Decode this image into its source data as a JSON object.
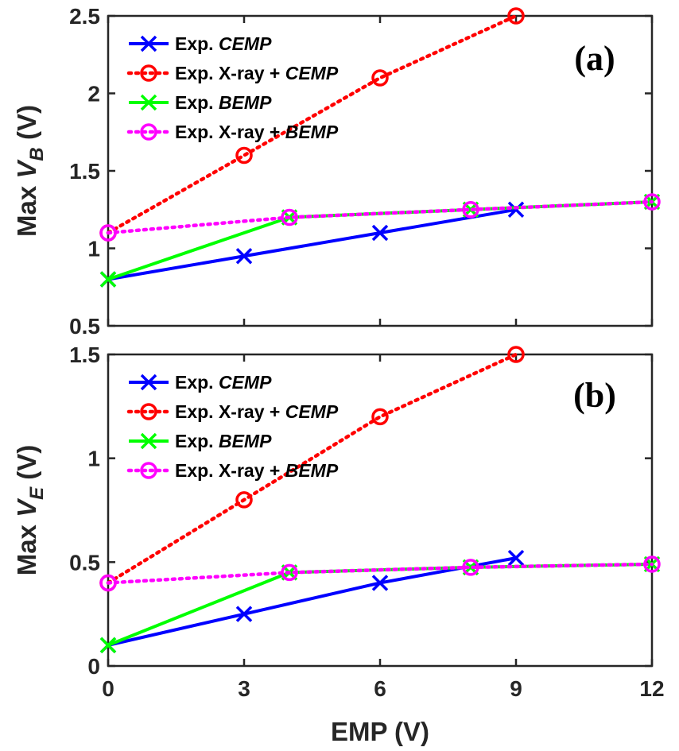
{
  "colors": {
    "cemp": "#0000ff",
    "xray_cemp": "#ff0000",
    "bemp": "#00ff00",
    "xray_bemp": "#ff00ff"
  },
  "chart_data": [
    {
      "type": "line",
      "panel_label": "(a)",
      "ylabel_prefix": "Max ",
      "ylabel_var": "V",
      "ylabel_sub": "B",
      "ylabel_suffix": " (V)",
      "xlabel": "",
      "xlim": [
        0,
        12
      ],
      "ylim": [
        0.5,
        2.5
      ],
      "xticks": [
        0,
        3,
        6,
        9,
        12
      ],
      "xtick_labels": [
        "",
        "",
        "",
        "",
        ""
      ],
      "yticks": [
        0.5,
        1,
        1.5,
        2,
        2.5
      ],
      "ytick_labels": [
        "0.5",
        "1",
        "1.5",
        "2",
        "2.5"
      ],
      "legend_position": "top-left",
      "series": [
        {
          "key": "cemp",
          "label_prefix": "Exp. ",
          "label_italic": "CEMP",
          "style": "solid",
          "marker": "x",
          "x": [
            0,
            3,
            6,
            9
          ],
          "y": [
            0.8,
            0.95,
            1.1,
            1.25
          ]
        },
        {
          "key": "xray_cemp",
          "label_prefix": "Exp. X-ray + ",
          "label_italic": "CEMP",
          "style": "dotted",
          "marker": "o",
          "x": [
            0,
            3,
            6,
            9
          ],
          "y": [
            1.1,
            1.6,
            2.1,
            2.5
          ]
        },
        {
          "key": "bemp",
          "label_prefix": "Exp. ",
          "label_italic": "BEMP",
          "style": "solid",
          "marker": "x",
          "x": [
            0,
            4,
            8,
            12
          ],
          "y": [
            0.8,
            1.2,
            1.25,
            1.3
          ]
        },
        {
          "key": "xray_bemp",
          "label_prefix": "Exp. X-ray + ",
          "label_italic": "BEMP",
          "style": "dotted",
          "marker": "o",
          "x": [
            0,
            4,
            8,
            12
          ],
          "y": [
            1.1,
            1.2,
            1.25,
            1.3
          ]
        }
      ]
    },
    {
      "type": "line",
      "panel_label": "(b)",
      "ylabel_prefix": "Max ",
      "ylabel_var": "V",
      "ylabel_sub": "E",
      "ylabel_suffix": " (V)",
      "xlabel": "EMP (V)",
      "xlim": [
        0,
        12
      ],
      "ylim": [
        0,
        1.5
      ],
      "xticks": [
        0,
        3,
        6,
        9,
        12
      ],
      "xtick_labels": [
        "0",
        "3",
        "6",
        "9",
        "12"
      ],
      "yticks": [
        0,
        0.5,
        1,
        1.5
      ],
      "ytick_labels": [
        "0",
        "0.5",
        "1",
        "1.5"
      ],
      "legend_position": "top-left",
      "series": [
        {
          "key": "cemp",
          "label_prefix": "Exp. ",
          "label_italic": "CEMP",
          "style": "solid",
          "marker": "x",
          "x": [
            0,
            3,
            6,
            9
          ],
          "y": [
            0.1,
            0.25,
            0.4,
            0.52
          ]
        },
        {
          "key": "xray_cemp",
          "label_prefix": "Exp. X-ray + ",
          "label_italic": "CEMP",
          "style": "dotted",
          "marker": "o",
          "x": [
            0,
            3,
            6,
            9
          ],
          "y": [
            0.4,
            0.8,
            1.2,
            1.5
          ]
        },
        {
          "key": "bemp",
          "label_prefix": "Exp. ",
          "label_italic": "BEMP",
          "style": "solid",
          "marker": "x",
          "x": [
            0,
            4,
            8,
            12
          ],
          "y": [
            0.1,
            0.45,
            0.475,
            0.49
          ]
        },
        {
          "key": "xray_bemp",
          "label_prefix": "Exp. X-ray + ",
          "label_italic": "BEMP",
          "style": "dotted",
          "marker": "o",
          "x": [
            0,
            4,
            8,
            12
          ],
          "y": [
            0.4,
            0.45,
            0.475,
            0.49
          ]
        }
      ]
    }
  ]
}
